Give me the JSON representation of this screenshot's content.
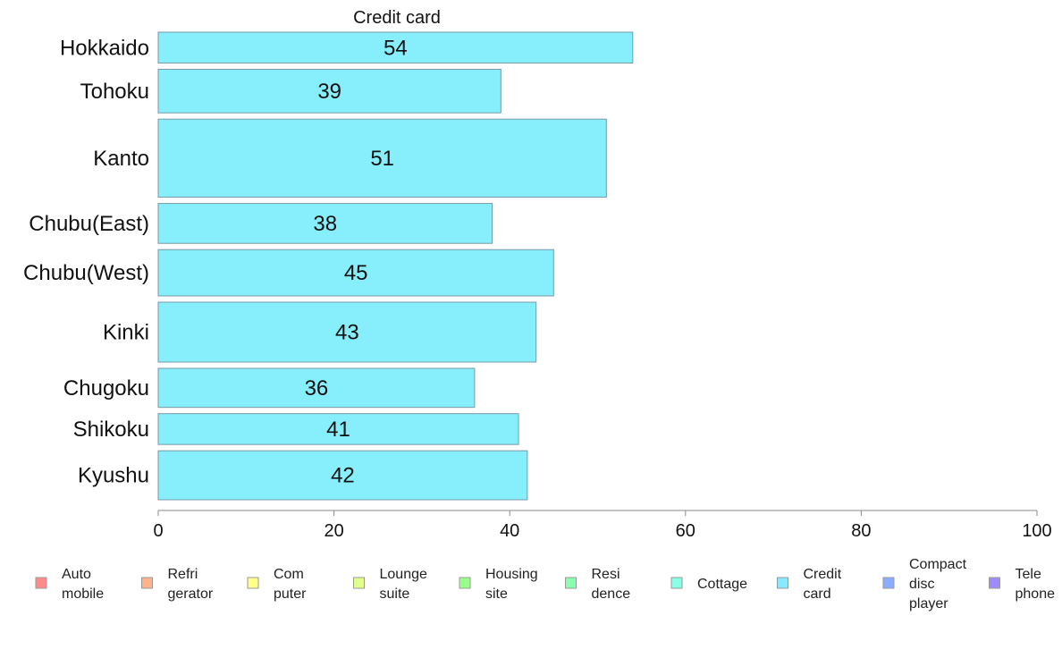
{
  "chart_data": {
    "type": "bar",
    "orientation": "horizontal",
    "title": "Credit card",
    "xlabel": "",
    "ylabel": "",
    "xlim": [
      0,
      100
    ],
    "xticks": [
      "0",
      "20",
      "40",
      "60",
      "80",
      "100"
    ],
    "categories": [
      "Hokkaido",
      "Tohoku",
      "Kanto",
      "Chubu(East)",
      "Chubu(West)",
      "Kinki",
      "Chugoku",
      "Shikoku",
      "Kyushu"
    ],
    "values": [
      54,
      39,
      51,
      38,
      45,
      43,
      36,
      41,
      42
    ],
    "bar_relative_widths": [
      34,
      48,
      86,
      44,
      51,
      66,
      43,
      34,
      54
    ],
    "bar_color": "#87eefc",
    "bar_stroke": "#7a9aa8",
    "grid": false,
    "legend_position": "bottom",
    "legend": [
      {
        "lines": [
          "Auto",
          "mobile"
        ],
        "color": "#ff8a8a"
      },
      {
        "lines": [
          "Refri",
          "gerator"
        ],
        "color": "#ffb38a"
      },
      {
        "lines": [
          "Com",
          "puter"
        ],
        "color": "#ffff8a"
      },
      {
        "lines": [
          "Lounge",
          "suite"
        ],
        "color": "#dfff8a"
      },
      {
        "lines": [
          "Housing",
          "site"
        ],
        "color": "#97ff8a"
      },
      {
        "lines": [
          "Resi",
          "dence"
        ],
        "color": "#8affb0"
      },
      {
        "lines": [
          "Cottage"
        ],
        "color": "#8affe8"
      },
      {
        "lines": [
          "Credit",
          "card"
        ],
        "color": "#8ae8ff"
      },
      {
        "lines": [
          "Compact",
          "disc",
          "player"
        ],
        "color": "#8aadff"
      },
      {
        "lines": [
          "Tele",
          "phone"
        ],
        "color": "#a08aff"
      }
    ]
  }
}
